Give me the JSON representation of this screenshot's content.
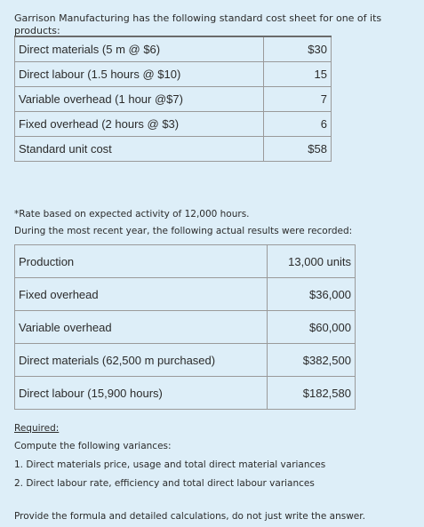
{
  "intro": "Garrison Manufacturing has the following standard cost sheet for one of its products:",
  "standard_cost": [
    {
      "label": "Direct materials (5 m @ $6)",
      "value": "$30"
    },
    {
      "label": "Direct labour (1.5 hours @ $10)",
      "value": "15"
    },
    {
      "label": "Variable overhead (1 hour @$7)",
      "value": "7"
    },
    {
      "label": "Fixed overhead (2 hours @ $3)",
      "value": "6"
    },
    {
      "label": "Standard unit cost",
      "value": "$58"
    }
  ],
  "rate_note": "*Rate based on expected activity of 12,000 hours.",
  "actual_intro": "During the most recent year, the following actual results were recorded:",
  "actual_results": [
    {
      "label": "Production",
      "value": "13,000 units"
    },
    {
      "label": "Fixed overhead",
      "value": "$36,000"
    },
    {
      "label": "Variable overhead",
      "value": "$60,000"
    },
    {
      "label": "Direct materials (62,500 m purchased)",
      "value": "$382,500"
    },
    {
      "label": "Direct labour (15,900 hours)",
      "value": "$182,580"
    }
  ],
  "required_heading": "Required:",
  "required_intro": "Compute the following variances:",
  "required_items": [
    "1. Direct materials price, usage and total direct material variances",
    "2. Direct labour rate, efficiency and total direct labour variances"
  ],
  "closing": "Provide the formula and detailed calculations, do not just write the answer."
}
